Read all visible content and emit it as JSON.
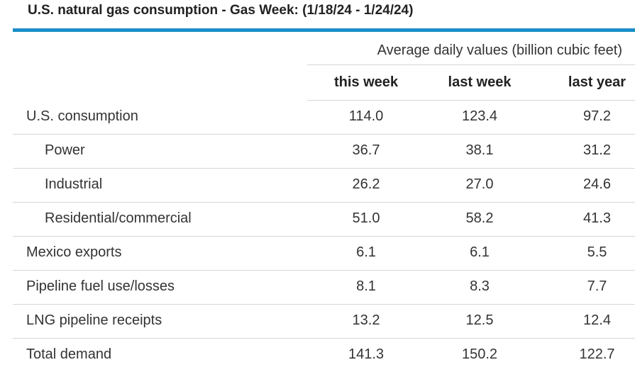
{
  "title": "U.S. natural gas consumption - Gas Week: (1/18/24 - 1/24/24)",
  "accent_color": "#1a8ec8",
  "group_header": "Average daily values (billion cubic feet)",
  "columns": [
    "this week",
    "last week",
    "last year"
  ],
  "rows": [
    {
      "label": "U.S. consumption",
      "values": [
        "114.0",
        "123.4",
        "97.2"
      ]
    },
    {
      "label": "Power",
      "values": [
        "36.7",
        "38.1",
        "31.2"
      ]
    },
    {
      "label": "Industrial",
      "values": [
        "26.2",
        "27.0",
        "24.6"
      ]
    },
    {
      "label": "Residential/commercial",
      "values": [
        "51.0",
        "58.2",
        "41.3"
      ]
    },
    {
      "label": "Mexico exports",
      "values": [
        "6.1",
        "6.1",
        "5.5"
      ]
    },
    {
      "label": "Pipeline fuel use/losses",
      "values": [
        "8.1",
        "8.3",
        "7.7"
      ]
    },
    {
      "label": "LNG pipeline receipts",
      "values": [
        "13.2",
        "12.5",
        "12.4"
      ]
    },
    {
      "label": "Total demand",
      "values": [
        "141.3",
        "150.2",
        "122.7"
      ]
    }
  ]
}
